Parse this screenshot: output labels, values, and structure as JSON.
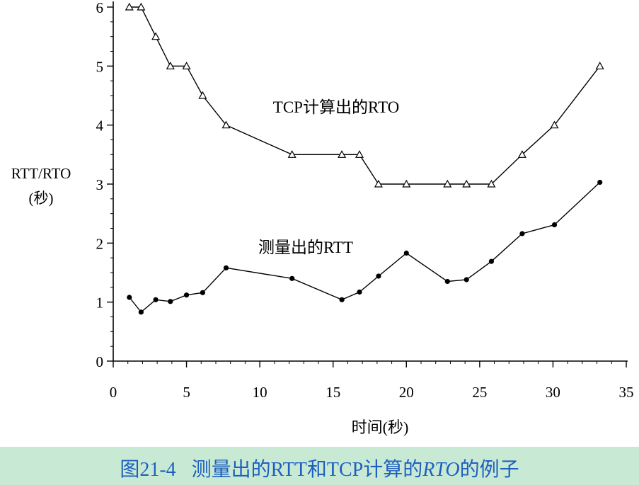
{
  "chart_data": {
    "type": "line",
    "xlabel": "时间(秒)",
    "ylabel": [
      "RTT/RTO",
      "(秒)"
    ],
    "xlim": [
      0,
      35
    ],
    "ylim": [
      0,
      6
    ],
    "xticks": [
      0,
      5,
      10,
      15,
      20,
      25,
      30,
      35
    ],
    "yticks": [
      0,
      1,
      2,
      3,
      4,
      5,
      6
    ],
    "grid": false,
    "series": [
      {
        "name": "TCP计算出的RTO",
        "marker": "triangle",
        "x": [
          1.1,
          1.9,
          2.9,
          3.9,
          5.0,
          6.1,
          7.7,
          12.2,
          15.6,
          16.8,
          18.1,
          20.0,
          22.8,
          24.1,
          25.8,
          27.9,
          30.1,
          33.2
        ],
        "y": [
          6.0,
          6.0,
          5.5,
          5.0,
          5.0,
          4.5,
          4.0,
          3.5,
          3.5,
          3.5,
          3.0,
          3.0,
          3.0,
          3.0,
          3.0,
          3.5,
          4.0,
          5.0
        ]
      },
      {
        "name": "测量出的RTT",
        "marker": "circle",
        "x": [
          1.1,
          1.9,
          2.9,
          3.9,
          5.0,
          6.1,
          7.7,
          12.2,
          15.6,
          16.8,
          18.1,
          20.0,
          22.8,
          24.1,
          25.8,
          27.9,
          30.1,
          33.2
        ],
        "y": [
          1.08,
          0.83,
          1.04,
          1.01,
          1.12,
          1.16,
          1.58,
          1.4,
          1.04,
          1.17,
          1.44,
          1.83,
          1.35,
          1.38,
          1.69,
          2.16,
          2.31,
          3.03
        ]
      }
    ]
  },
  "caption": {
    "number": "图21-4",
    "text_before": "测量出的RTT和TCP计算的",
    "italic": "RTO",
    "text_after": "的例子"
  },
  "colors": {
    "line": "#000000",
    "caption_text": "#1f5fbf",
    "caption_background": "#c8ead5"
  }
}
